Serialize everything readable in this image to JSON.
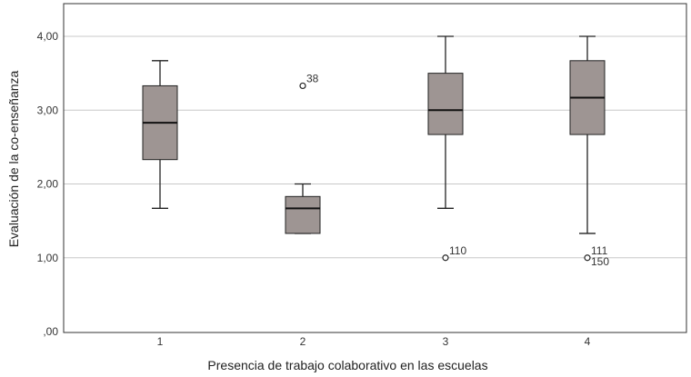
{
  "chart_data": {
    "type": "boxplot",
    "xlabel": "Presencia de trabajo colaborativo en las escuelas",
    "ylabel": "Evaluación de la co-enseñanza",
    "ylim": [
      0,
      4.4
    ],
    "yticks": [
      0,
      1,
      2,
      3,
      4
    ],
    "ytick_labels": [
      ",00",
      "1,00",
      "2,00",
      "3,00",
      "4,00"
    ],
    "categories": [
      "1",
      "2",
      "3",
      "4"
    ],
    "boxes": [
      {
        "category": "1",
        "whisker_low": 1.67,
        "q1": 2.33,
        "median": 2.83,
        "q3": 3.33,
        "whisker_high": 3.67,
        "outliers": []
      },
      {
        "category": "2",
        "whisker_low": 1.33,
        "q1": 1.33,
        "median": 1.67,
        "q3": 1.83,
        "whisker_high": 2.0,
        "outliers": [
          {
            "value": 3.33,
            "labels": [
              "38"
            ]
          }
        ]
      },
      {
        "category": "3",
        "whisker_low": 1.67,
        "q1": 2.67,
        "median": 3.0,
        "q3": 3.5,
        "whisker_high": 4.0,
        "outliers": [
          {
            "value": 1.0,
            "labels": [
              "110"
            ]
          }
        ]
      },
      {
        "category": "4",
        "whisker_low": 1.33,
        "q1": 2.67,
        "median": 3.17,
        "q3": 3.67,
        "whisker_high": 4.0,
        "outliers": [
          {
            "value": 1.0,
            "labels": [
              "111",
              "150"
            ]
          }
        ]
      }
    ],
    "grid": "horizontal",
    "colors": {
      "box_fill": "#9e9593",
      "box_stroke": "#222222",
      "grid": "#c8c8c8",
      "frame": "#333333"
    }
  }
}
